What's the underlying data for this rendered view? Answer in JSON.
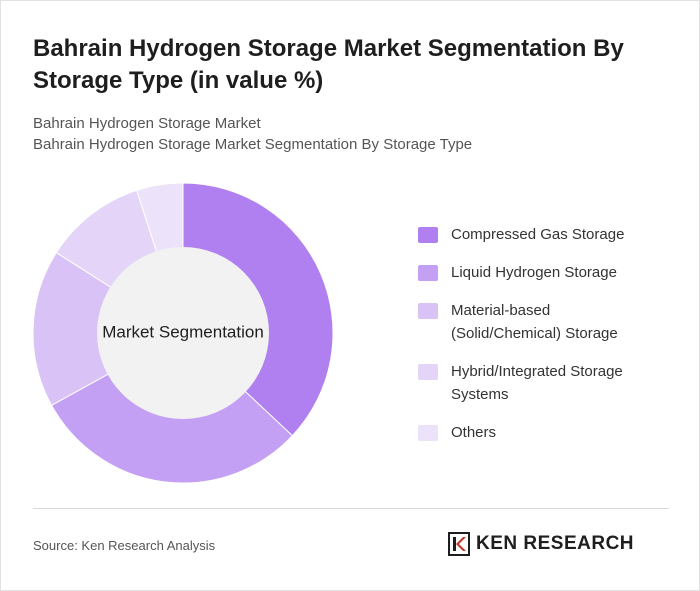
{
  "title": "Bahrain Hydrogen Storage Market Segmentation By Storage Type (in value %)",
  "subtitle_1": "Bahrain Hydrogen Storage Market",
  "subtitle_2": "Bahrain Hydrogen Storage Market Segmentation By Storage Type",
  "source": "Source: Ken Research Analysis",
  "logo_text": "KEN RESEARCH",
  "colors": {
    "compressed": "#b07ff0",
    "liquid": "#c3a0f3",
    "material": "#d9c2f6",
    "hybrid": "#e4d5f8",
    "others": "#ece2f9",
    "hole": "#f2f2f2"
  },
  "chart_data": {
    "type": "pie",
    "variant": "donut",
    "center_label": "Market Segmentation",
    "categories": [
      "Compressed Gas Storage",
      "Liquid Hydrogen Storage",
      "Material-based (Solid/Chemical) Storage",
      "Hybrid/Integrated Storage Systems",
      "Others"
    ],
    "values": [
      37,
      30,
      17,
      11,
      5
    ],
    "legend_position": "right"
  }
}
